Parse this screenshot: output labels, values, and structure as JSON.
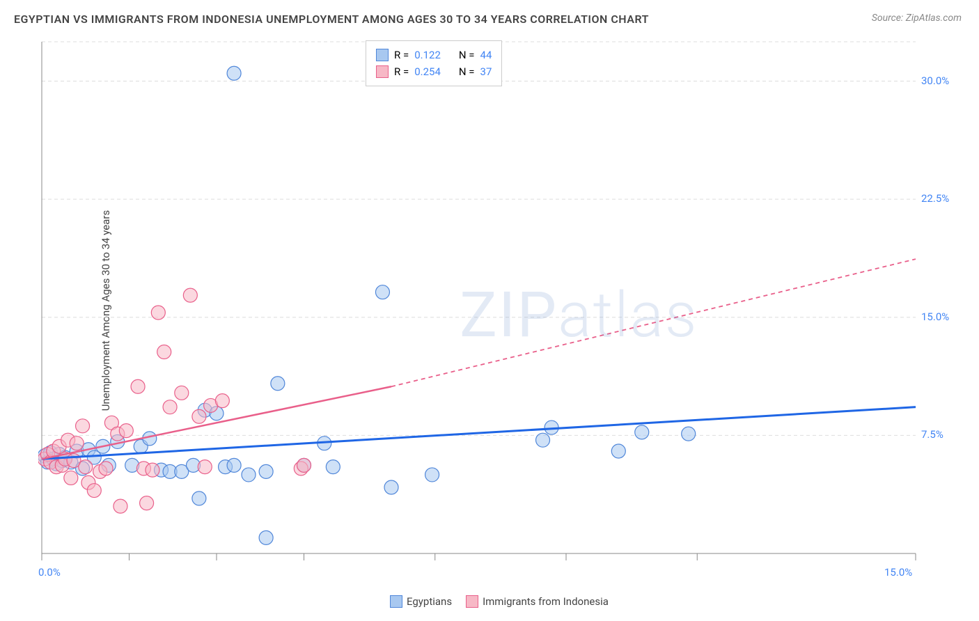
{
  "title": "EGYPTIAN VS IMMIGRANTS FROM INDONESIA UNEMPLOYMENT AMONG AGES 30 TO 34 YEARS CORRELATION CHART",
  "source": "Source: ZipAtlas.com",
  "y_axis_label": "Unemployment Among Ages 30 to 34 years",
  "watermark": "ZIPatlas",
  "chart": {
    "type": "scatter",
    "background_color": "#ffffff",
    "grid_color": "#dddddd",
    "grid_dash": "5,4",
    "axis_color": "#888888",
    "xlim": [
      0,
      15
    ],
    "ylim": [
      0,
      32.5
    ],
    "x_ticks": [
      0,
      1.5,
      3.0,
      4.5,
      6.75,
      9.0,
      11.25,
      15.0
    ],
    "x_tick_labels": {
      "0": "0.0%",
      "15": "15.0%"
    },
    "y_ticks": [
      7.5,
      15.0,
      22.5,
      30.0
    ],
    "y_tick_labels": {
      "7.5": "7.5%",
      "15.0": "15.0%",
      "22.5": "22.5%",
      "30.0": "30.0%"
    },
    "marker_radius": 10,
    "marker_opacity": 0.55,
    "series": [
      {
        "name": "Egyptians",
        "fill_color": "#a8c8f0",
        "stroke_color": "#4f86d9",
        "line_color": "#1f66e5",
        "r_value": "0.122",
        "n_value": "44",
        "points": [
          [
            0.05,
            6.2
          ],
          [
            0.1,
            5.8
          ],
          [
            0.15,
            6.4
          ],
          [
            0.2,
            6.0
          ],
          [
            0.25,
            5.7
          ],
          [
            0.3,
            6.3
          ],
          [
            0.35,
            5.9
          ],
          [
            0.4,
            6.1
          ],
          [
            0.5,
            5.8
          ],
          [
            0.6,
            6.5
          ],
          [
            0.7,
            5.4
          ],
          [
            0.8,
            6.6
          ],
          [
            0.9,
            6.1
          ],
          [
            1.05,
            6.8
          ],
          [
            1.15,
            5.6
          ],
          [
            1.3,
            7.1
          ],
          [
            1.55,
            5.6
          ],
          [
            1.7,
            6.8
          ],
          [
            1.85,
            7.3
          ],
          [
            2.05,
            5.3
          ],
          [
            2.2,
            5.2
          ],
          [
            2.4,
            5.2
          ],
          [
            2.6,
            5.6
          ],
          [
            2.7,
            3.5
          ],
          [
            2.8,
            9.1
          ],
          [
            3.15,
            5.5
          ],
          [
            3.0,
            8.9
          ],
          [
            3.3,
            30.5
          ],
          [
            3.3,
            5.6
          ],
          [
            3.55,
            5.0
          ],
          [
            3.85,
            1.0
          ],
          [
            3.85,
            5.2
          ],
          [
            4.05,
            10.8
          ],
          [
            4.5,
            5.6
          ],
          [
            4.85,
            7.0
          ],
          [
            5.0,
            5.5
          ],
          [
            5.85,
            16.6
          ],
          [
            6.0,
            4.2
          ],
          [
            6.7,
            5.0
          ],
          [
            8.75,
            8.0
          ],
          [
            8.6,
            7.2
          ],
          [
            9.9,
            6.5
          ],
          [
            10.3,
            7.7
          ],
          [
            11.1,
            7.6
          ]
        ],
        "trend": {
          "x1": 0,
          "y1": 6.0,
          "x2": 15,
          "y2": 9.3,
          "dash": "none",
          "width": 3
        }
      },
      {
        "name": "Immigrants from Indonesia",
        "fill_color": "#f7b8c6",
        "stroke_color": "#e95f8a",
        "line_color": "#e95f8a",
        "r_value": "0.254",
        "n_value": "37",
        "points": [
          [
            0.05,
            6.0
          ],
          [
            0.1,
            6.3
          ],
          [
            0.15,
            5.8
          ],
          [
            0.2,
            6.5
          ],
          [
            0.25,
            5.5
          ],
          [
            0.3,
            6.8
          ],
          [
            0.35,
            5.6
          ],
          [
            0.4,
            6.0
          ],
          [
            0.45,
            7.2
          ],
          [
            0.5,
            4.8
          ],
          [
            0.55,
            5.9
          ],
          [
            0.6,
            7.0
          ],
          [
            0.7,
            8.1
          ],
          [
            0.75,
            5.5
          ],
          [
            0.8,
            4.5
          ],
          [
            0.9,
            4.0
          ],
          [
            1.0,
            5.2
          ],
          [
            1.1,
            5.4
          ],
          [
            1.2,
            8.3
          ],
          [
            1.3,
            7.6
          ],
          [
            1.35,
            3.0
          ],
          [
            1.45,
            7.8
          ],
          [
            1.65,
            10.6
          ],
          [
            1.75,
            5.4
          ],
          [
            1.8,
            3.2
          ],
          [
            1.9,
            5.3
          ],
          [
            2.0,
            15.3
          ],
          [
            2.1,
            12.8
          ],
          [
            2.2,
            9.3
          ],
          [
            2.4,
            10.2
          ],
          [
            2.55,
            16.4
          ],
          [
            2.7,
            8.7
          ],
          [
            2.9,
            9.4
          ],
          [
            2.8,
            5.5
          ],
          [
            3.1,
            9.7
          ],
          [
            4.45,
            5.4
          ],
          [
            4.5,
            5.6
          ]
        ],
        "trend_solid": {
          "x1": 0,
          "y1": 6.0,
          "x2": 6.0,
          "y2": 10.6,
          "width": 2.5
        },
        "trend_dash": {
          "x1": 6.0,
          "y1": 10.6,
          "x2": 15,
          "y2": 18.7,
          "dash": "6,5",
          "width": 1.8
        }
      }
    ]
  },
  "stats_box": {
    "row1": {
      "r_label": "R =",
      "r": "0.122",
      "n_label": "N =",
      "n": "44"
    },
    "row2": {
      "r_label": "R =",
      "r": "0.254",
      "n_label": "N =",
      "n": "37"
    }
  },
  "legend": {
    "s1": "Egyptians",
    "s2": "Immigrants from Indonesia"
  }
}
